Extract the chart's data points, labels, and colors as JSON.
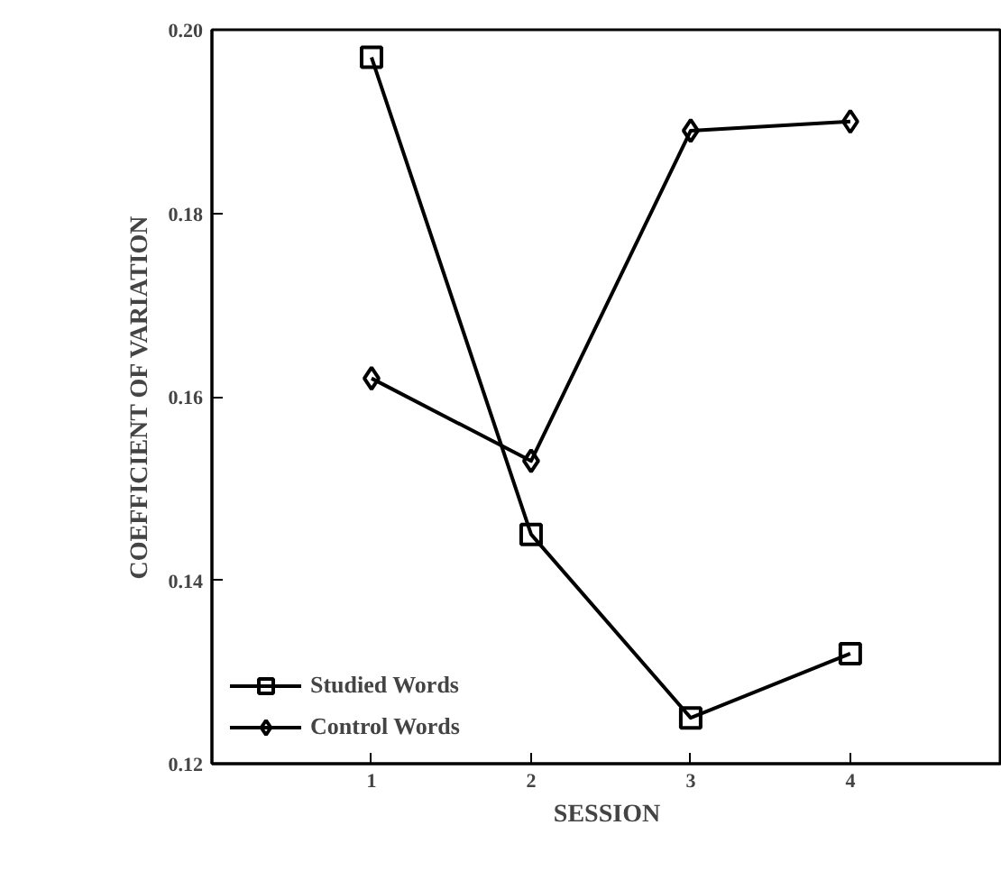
{
  "chart_data": {
    "type": "line",
    "xlabel": "SESSION",
    "ylabel": "COEFFICIENT OF VARIATION",
    "x": [
      1,
      2,
      3,
      4
    ],
    "xlim": [
      0,
      4.95
    ],
    "xticks": [
      1,
      2,
      3,
      4
    ],
    "ylim": [
      0.12,
      0.2
    ],
    "yticks": [
      0.12,
      0.14,
      0.16,
      0.18,
      {
        "value": 0.2,
        "label": "0.20"
      }
    ],
    "legend": "bottom left",
    "grid": false,
    "line_style": "solid",
    "series": [
      {
        "name": "Studied Words",
        "color": "#000000",
        "marker": "square",
        "values": [
          0.197,
          0.145,
          0.125,
          0.132
        ]
      },
      {
        "name": "Control Words",
        "color": "#000000",
        "marker": "diamond",
        "values": [
          0.162,
          0.153,
          0.189,
          0.19
        ]
      }
    ]
  }
}
